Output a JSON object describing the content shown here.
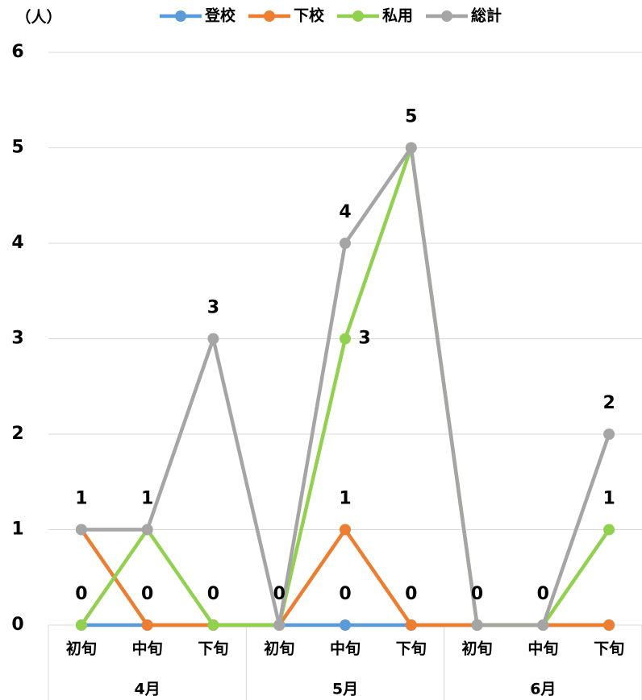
{
  "chart_data": {
    "type": "line",
    "unit_label": "（人）",
    "categories": [
      "初旬",
      "中旬",
      "下旬",
      "初旬",
      "中旬",
      "下旬",
      "初旬",
      "中旬",
      "下旬"
    ],
    "groups": [
      {
        "label": "4月",
        "span": 3
      },
      {
        "label": "5月",
        "span": 3
      },
      {
        "label": "6月",
        "span": 3
      }
    ],
    "series": [
      {
        "name": "登校",
        "color": "#5b9bd5",
        "values": [
          0,
          0,
          0,
          0,
          0,
          0,
          0,
          0,
          0
        ],
        "value_labels": [
          null,
          null,
          null,
          null,
          "0",
          null,
          null,
          null,
          null
        ]
      },
      {
        "name": "下校",
        "color": "#ed7d31",
        "values": [
          1,
          0,
          0,
          0,
          1,
          0,
          0,
          0,
          0
        ],
        "value_labels": [
          null,
          "0",
          "0",
          null,
          "1",
          "0",
          null,
          null,
          null
        ]
      },
      {
        "name": "私用",
        "color": "#92d050",
        "values": [
          0,
          1,
          0,
          0,
          3,
          5,
          0,
          0,
          1
        ],
        "value_labels": [
          "0",
          null,
          null,
          null,
          "3",
          null,
          null,
          null,
          "1"
        ]
      },
      {
        "name": "総計",
        "color": "#a5a5a5",
        "values": [
          1,
          1,
          3,
          0,
          4,
          5,
          0,
          0,
          2
        ],
        "value_labels": [
          "1",
          "1",
          "3",
          "0",
          "4",
          "5",
          "0",
          "0",
          "2"
        ]
      }
    ],
    "ylim": [
      0,
      6
    ],
    "yticks": [
      0,
      1,
      2,
      3,
      4,
      5,
      6
    ],
    "grid": true,
    "legend": "top"
  }
}
